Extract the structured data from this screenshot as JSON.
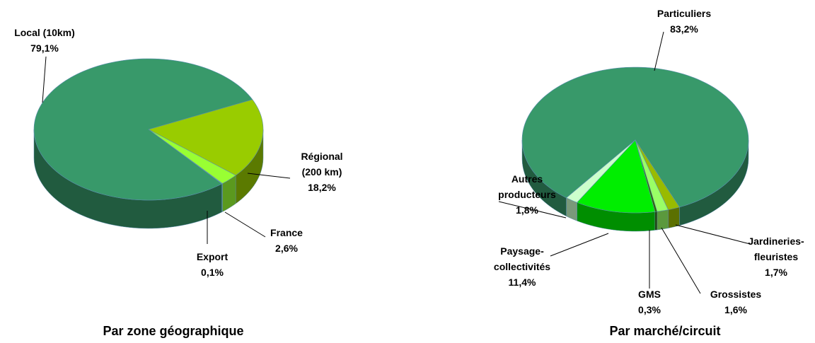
{
  "chart_data": [
    {
      "type": "pie",
      "title": "Par zone géographique",
      "categories": [
        "Régional\n(200 km)",
        "France",
        "Export",
        "Local (10km)"
      ],
      "values": [
        18.2,
        2.6,
        0.1,
        79.1
      ],
      "value_labels": [
        "18,2%",
        "2,6%",
        "0,1%",
        "79,1%"
      ],
      "colors": [
        "#99cc00",
        "#99ff33",
        "#ccffcc",
        "#38996a"
      ]
    },
    {
      "type": "pie",
      "title": "Par marché/circuit",
      "categories": [
        "Particuliers",
        "Jardineries-\nfleuristes",
        "Grossistes",
        "GMS",
        "Paysage-\ncollectivités",
        "Autres\nproducteurs"
      ],
      "values": [
        83.2,
        1.7,
        1.6,
        0.3,
        11.4,
        1.8
      ],
      "value_labels": [
        "83,2%",
        "1,7%",
        "1,6%",
        "0,3%",
        "11,4%",
        "1,8%"
      ],
      "colors": [
        "#38996a",
        "#99bb00",
        "#99ff66",
        "#336600",
        "#00ee00",
        "#ccffcc"
      ]
    }
  ]
}
